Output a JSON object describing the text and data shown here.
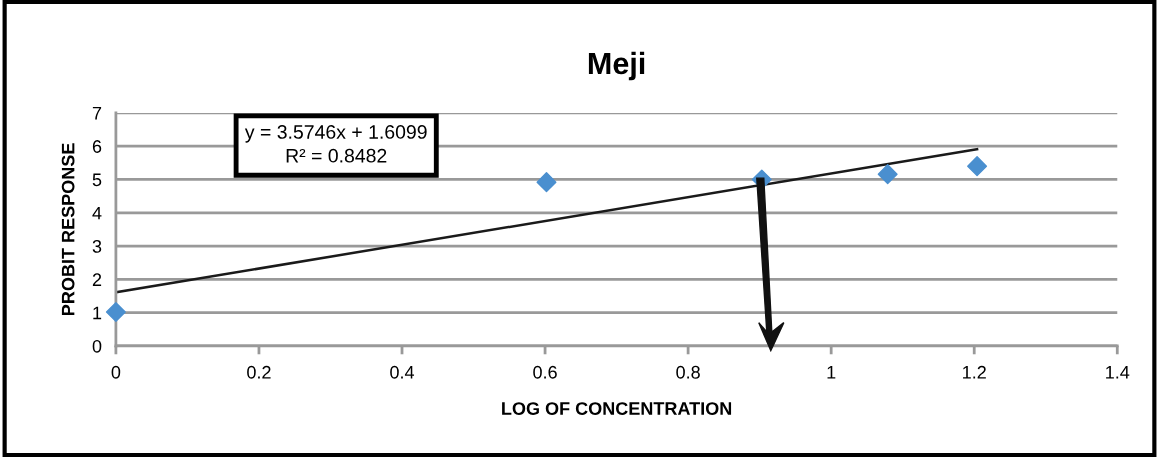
{
  "chart_data": {
    "type": "scatter",
    "title": "Meji",
    "xlabel": "LOG OF CONCENTRATION",
    "ylabel": "PROBIT RESPONSE",
    "series": [
      {
        "color": "#4a8fcf",
        "marker": "diamond",
        "x": [
          0,
          0.602,
          0.903,
          1.079,
          1.204
        ],
        "values": [
          1.02,
          4.92,
          5.0,
          5.16,
          5.4
        ]
      },
      {
        "type": "line",
        "color": "#1a1a1a",
        "marker": "none",
        "x": [
          0,
          1.204
        ],
        "values": [
          1.61,
          5.91
        ]
      }
    ],
    "annotations": [
      "y = 3.5746x + 1.6099\nR² = 0.8482"
    ],
    "xlim": [
      0,
      1.4
    ],
    "xticks": [
      0,
      0.2,
      0.4,
      0.6,
      0.8,
      1,
      1.2,
      1.4
    ],
    "ylim": [
      0,
      7
    ],
    "yticks": [
      0,
      1,
      2,
      3,
      4,
      5,
      6,
      7
    ],
    "grid": "y",
    "legend": false
  }
}
